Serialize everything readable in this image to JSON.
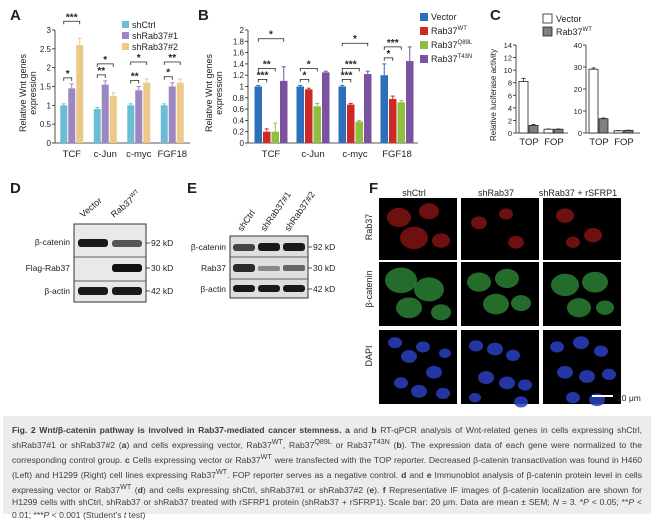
{
  "figure": {
    "panel_a": {
      "letter": "A",
      "ylabel_line1": "Relative Wnt genes",
      "ylabel_line2": "expression",
      "legend": [
        "shCtrl",
        "shRab37#1",
        "shRab37#2"
      ],
      "colors": [
        "#6bbdd6",
        "#9c87c3",
        "#ecc889"
      ],
      "significance": [
        [
          "*",
          "***"
        ],
        [
          "**",
          "*"
        ],
        [
          "**",
          "*"
        ],
        [
          "*",
          "**"
        ]
      ]
    },
    "panel_b": {
      "letter": "B",
      "ylabel_line1": "Relative Wnt genes",
      "ylabel_line2": "expression",
      "legend_base": [
        "Vector",
        "Rab37",
        "Rab37",
        "Rab37"
      ],
      "legend_sup": [
        "",
        "WT",
        "Q89L",
        "T43N"
      ],
      "colors": [
        "#2c6fba",
        "#cc2a26",
        "#8fbf3e",
        "#7a52a0"
      ],
      "significance": [
        [
          "***",
          "**",
          "*"
        ],
        [
          "*",
          "*"
        ],
        [
          "***",
          "***",
          "*"
        ],
        [
          "*",
          "***"
        ]
      ]
    },
    "panel_c": {
      "letter": "C",
      "ylabel": "Relative luciferase activity",
      "legend_base": [
        "Vector",
        "Rab37"
      ],
      "legend_sup": [
        "",
        "WT"
      ],
      "colors": [
        "#ffffff",
        "#808080"
      ]
    },
    "panel_d": {
      "letter": "D",
      "lanes": [
        "Vector",
        "Rab37"
      ],
      "lane_sup": [
        "",
        "WT"
      ],
      "rows": [
        "β-catenin",
        "Flag-Rab37",
        "β-actin"
      ],
      "sizes": [
        "92 kD",
        "30 kD",
        "42 kD"
      ]
    },
    "panel_e": {
      "letter": "E",
      "lanes": [
        "shCtrl",
        "shRab37#1",
        "shRab37#2"
      ],
      "rows": [
        "β-catenin",
        "Rab37",
        "β-actin"
      ],
      "sizes": [
        "92 kD",
        "30 kD",
        "42 kD"
      ]
    },
    "panel_f": {
      "letter": "F",
      "columns": [
        "shCtrl",
        "shRab37",
        "shRab37 + rSFRP1"
      ],
      "rows": [
        "Rab37",
        "β-catenin",
        "DAPI"
      ],
      "scale_bar": "20 μm",
      "colors": {
        "red": "#c81e1e",
        "green": "#3cb44a",
        "blue": "#2a3fc0"
      }
    }
  },
  "chart_data": [
    {
      "type": "bar",
      "panel": "A",
      "title": "",
      "ylabel": "Relative Wnt genes expression",
      "categories": [
        "TCF",
        "c-Jun",
        "c-myc",
        "FGF18"
      ],
      "series": [
        {
          "name": "shCtrl",
          "values": [
            1.0,
            0.9,
            1.0,
            1.0
          ],
          "errors": [
            0.04,
            0.04,
            0.04,
            0.04
          ]
        },
        {
          "name": "shRab37#1",
          "values": [
            1.45,
            1.55,
            1.4,
            1.5
          ],
          "errors": [
            0.12,
            0.1,
            0.1,
            0.1
          ]
        },
        {
          "name": "shRab37#2",
          "values": [
            2.6,
            1.25,
            1.6,
            1.6
          ],
          "errors": [
            0.18,
            0.08,
            0.1,
            0.1
          ]
        }
      ],
      "ylim": [
        0,
        3
      ],
      "yticks": [
        "0",
        "0.5",
        "1",
        "1.5",
        "2",
        "2.5",
        "3"
      ]
    },
    {
      "type": "bar",
      "panel": "B",
      "title": "",
      "ylabel": "Relative Wnt genes expression",
      "categories": [
        "TCF",
        "c-Jun",
        "c-myc",
        "FGF18"
      ],
      "series": [
        {
          "name": "Vector",
          "values": [
            1.0,
            1.0,
            1.0,
            1.2
          ],
          "errors": [
            0.02,
            0.02,
            0.02,
            0.2
          ]
        },
        {
          "name": "Rab37WT",
          "values": [
            0.2,
            0.95,
            0.68,
            0.78
          ],
          "errors": [
            0.05,
            0.02,
            0.02,
            0.05
          ]
        },
        {
          "name": "Rab37Q89L",
          "values": [
            0.2,
            0.65,
            0.38,
            0.72
          ],
          "errors": [
            0.15,
            0.05,
            0.02,
            0.03
          ]
        },
        {
          "name": "Rab37T43N",
          "values": [
            1.1,
            1.25,
            1.22,
            1.45
          ],
          "errors": [
            0.25,
            0.02,
            0.05,
            0.25
          ]
        }
      ],
      "ylim": [
        0,
        2
      ],
      "yticks": [
        "0",
        "0.2",
        "0.4",
        "0.6",
        "0.8",
        "1",
        "1.2",
        "1.4",
        "1.6",
        "1.8",
        "2"
      ]
    },
    {
      "type": "bar",
      "panel": "C (left, H460)",
      "title": "",
      "ylabel": "Relative luciferase activity",
      "categories": [
        "TOP",
        "FOP"
      ],
      "series": [
        {
          "name": "Vector",
          "values": [
            8.2,
            0.6
          ],
          "errors": [
            0.5,
            0.05
          ]
        },
        {
          "name": "Rab37WT",
          "values": [
            1.2,
            0.6
          ],
          "errors": [
            0.15,
            0.05
          ]
        }
      ],
      "ylim": [
        0,
        14
      ],
      "yticks": [
        "0",
        "2",
        "4",
        "6",
        "8",
        "10",
        "12",
        "14"
      ]
    },
    {
      "type": "bar",
      "panel": "C (right, H1299)",
      "title": "",
      "ylabel": "",
      "categories": [
        "TOP",
        "FOP"
      ],
      "series": [
        {
          "name": "Vector",
          "values": [
            29.0,
            1.0
          ],
          "errors": [
            0.6,
            0.1
          ]
        },
        {
          "name": "Rab37WT",
          "values": [
            6.5,
            1.2
          ],
          "errors": [
            0.3,
            0.1
          ]
        }
      ],
      "ylim": [
        0,
        40
      ],
      "yticks": [
        "0",
        "10",
        "20",
        "30",
        "40"
      ]
    }
  ],
  "caption": {
    "title": "Fig. 2 Wnt/β-catenin pathway is involved in Rab37-mediated cancer stemness.",
    "body_html": " <b>a</b> and <b>b</b> RT-qPCR analysis of Wnt-related genes in cells expressing shCtrl, shRab37#1 or shRab37#2 (<b>a</b>) and cells expressing vector, Rab37<sup>WT</sup>, Rab37<sup>Q89L</sup> or Rab37<sup>T43N</sup> (<b>b</b>). The expression data of each gene were normalized to the corresponding control group. <b>c</b> Cells expressing vector or Rab37<sup>WT</sup> were transfected with the TOP reporter. Decreased β-catenin transactivation was found in H460 (Left) and H1299 (Right) cell lines expressing Rab37<sup>WT</sup>. FOP reporter serves as a negative control. <b>d</b> and <b>e</b> Immunoblot analysis of β-catenin protein level in cells expressing vector or Rab37<sup>WT</sup> (<b>d</b>) and cells expressing shCtrl, shRab37#1 or shRab37#2 (<b>e</b>). <b>f</b> Representative IF images of β-catenin localization are shown for H1299 cells with shCtrl, shRab37 or shRab37 treated with rSFRP1 protein (shRab37 + rSFRP1). Scale bar: 20 μm. Data are mean ± SEM; <i>N</i> = 3. *<i>P</i> &lt; 0.05; **<i>P</i> &lt; 0.01; ***<i>P</i> &lt; 0.001 (Student’s <i>t</i> test)"
  }
}
